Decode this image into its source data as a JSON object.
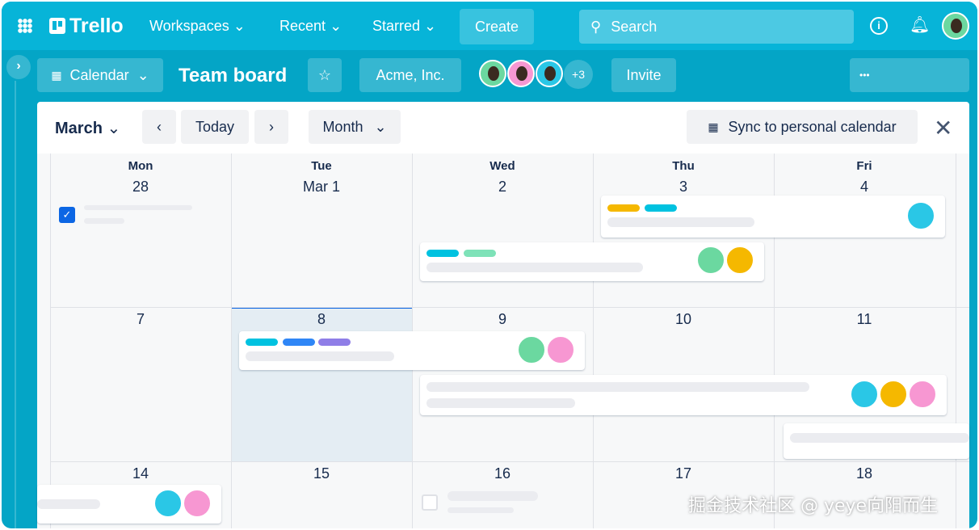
{
  "nav": {
    "brand": "Trello",
    "workspaces": "Workspaces",
    "recent": "Recent",
    "starred": "Starred",
    "create": "Create",
    "search_placeholder": "Search"
  },
  "board": {
    "view": "Calendar",
    "title": "Team board",
    "workspace": "Acme, Inc.",
    "member_overflow": "+3",
    "invite": "Invite",
    "more": "•••"
  },
  "calendar": {
    "month": "March",
    "today": "Today",
    "mode": "Month",
    "sync": "Sync to personal calendar",
    "weekdays": [
      "Mon",
      "Tue",
      "Wed",
      "Thu",
      "Fri"
    ],
    "weeks": [
      [
        "28",
        "Mar 1",
        "2",
        "3",
        "4"
      ],
      [
        "7",
        "8",
        "9",
        "10",
        "11"
      ],
      [
        "14",
        "15",
        "16",
        "17",
        "18"
      ]
    ],
    "selected_day": "8"
  },
  "watermark": "掘金技术社区 @ yeye向阳而生",
  "colors": {
    "nav": "#07b4d8",
    "board": "#04a5c6",
    "label_yellow": "#f5b800",
    "label_cyan": "#00c2e0",
    "label_green": "#7ee2b8",
    "label_blue": "#2f86f6",
    "label_purple": "#8f7ee7",
    "check": "#0c66e4"
  }
}
